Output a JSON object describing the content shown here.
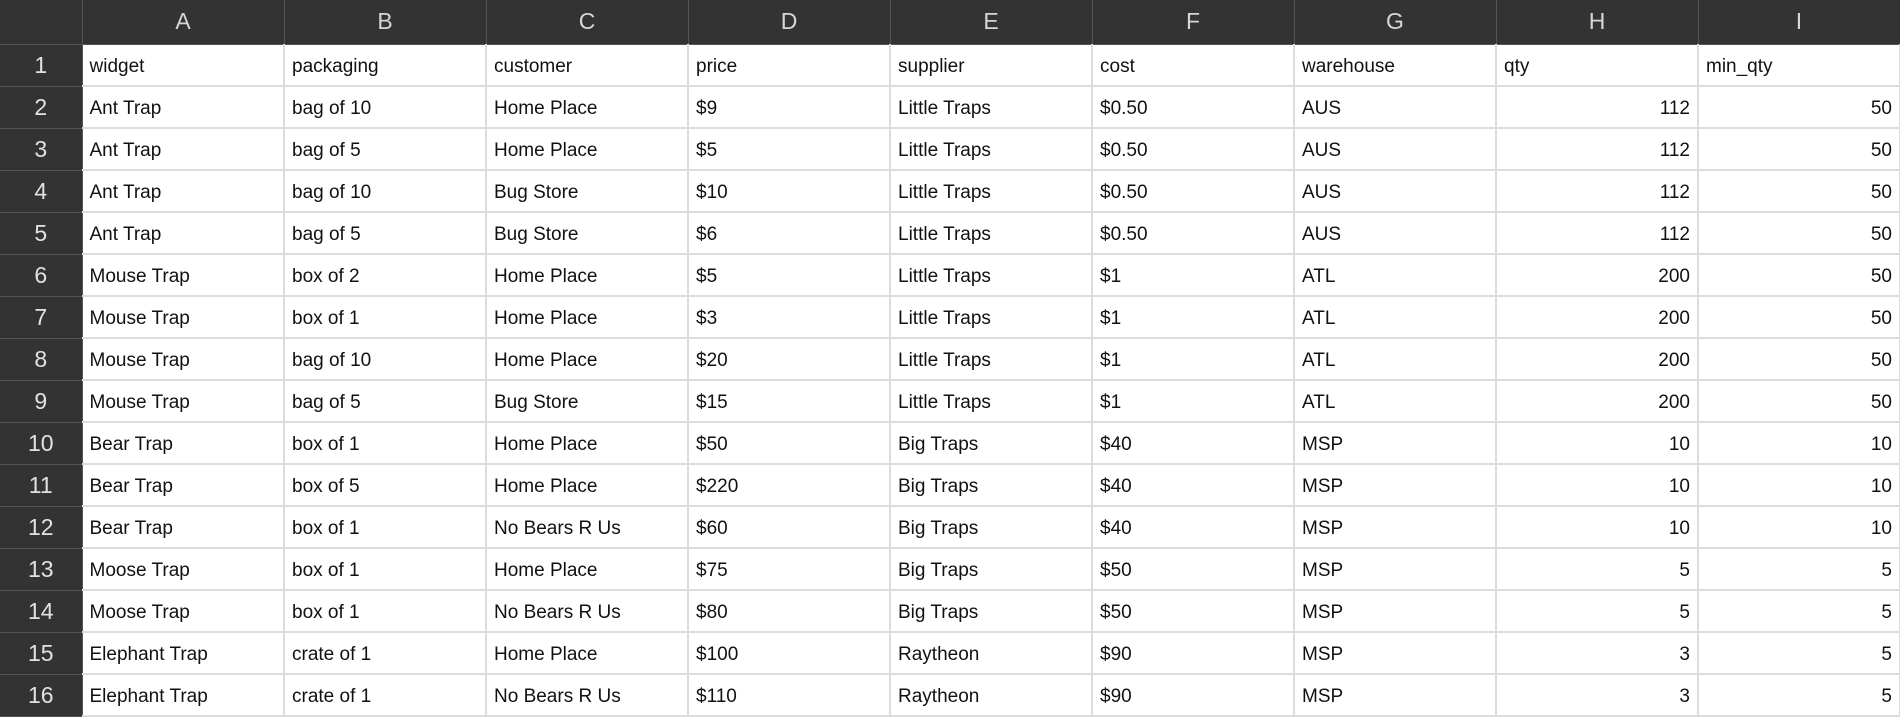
{
  "column_headers": [
    "A",
    "B",
    "C",
    "D",
    "E",
    "F",
    "G",
    "H",
    "I"
  ],
  "rows": [
    {
      "row": "1",
      "cells": [
        "widget",
        "packaging",
        "customer",
        "price",
        "supplier",
        "cost",
        "warehouse",
        "qty",
        "min_qty"
      ]
    },
    {
      "row": "2",
      "cells": [
        "Ant Trap",
        "bag of 10",
        "Home Place",
        "$9",
        "Little Traps",
        "$0.50",
        "AUS",
        "112",
        "50"
      ]
    },
    {
      "row": "3",
      "cells": [
        "Ant Trap",
        "bag of 5",
        "Home Place",
        "$5",
        "Little Traps",
        "$0.50",
        "AUS",
        "112",
        "50"
      ]
    },
    {
      "row": "4",
      "cells": [
        "Ant Trap",
        "bag of 10",
        "Bug Store",
        "$10",
        "Little Traps",
        "$0.50",
        "AUS",
        "112",
        "50"
      ]
    },
    {
      "row": "5",
      "cells": [
        "Ant Trap",
        "bag of 5",
        "Bug Store",
        "$6",
        "Little Traps",
        "$0.50",
        "AUS",
        "112",
        "50"
      ]
    },
    {
      "row": "6",
      "cells": [
        "Mouse Trap",
        "box of 2",
        "Home Place",
        "$5",
        "Little Traps",
        "$1",
        "ATL",
        "200",
        "50"
      ]
    },
    {
      "row": "7",
      "cells": [
        "Mouse Trap",
        "box of 1",
        "Home Place",
        "$3",
        "Little Traps",
        "$1",
        "ATL",
        "200",
        "50"
      ]
    },
    {
      "row": "8",
      "cells": [
        "Mouse Trap",
        "bag of 10",
        "Home Place",
        "$20",
        "Little Traps",
        "$1",
        "ATL",
        "200",
        "50"
      ]
    },
    {
      "row": "9",
      "cells": [
        "Mouse Trap",
        "bag of 5",
        "Bug Store",
        "$15",
        "Little Traps",
        "$1",
        "ATL",
        "200",
        "50"
      ]
    },
    {
      "row": "10",
      "cells": [
        "Bear Trap",
        "box of 1",
        "Home Place",
        "$50",
        "Big Traps",
        "$40",
        "MSP",
        "10",
        "10"
      ]
    },
    {
      "row": "11",
      "cells": [
        "Bear Trap",
        "box of 5",
        "Home Place",
        "$220",
        "Big Traps",
        "$40",
        "MSP",
        "10",
        "10"
      ]
    },
    {
      "row": "12",
      "cells": [
        "Bear Trap",
        "box of 1",
        "No Bears R Us",
        "$60",
        "Big Traps",
        "$40",
        "MSP",
        "10",
        "10"
      ]
    },
    {
      "row": "13",
      "cells": [
        "Moose Trap",
        "box of 1",
        "Home Place",
        "$75",
        "Big Traps",
        "$50",
        "MSP",
        "5",
        "5"
      ]
    },
    {
      "row": "14",
      "cells": [
        "Moose Trap",
        "box of 1",
        "No Bears R Us",
        "$80",
        "Big Traps",
        "$50",
        "MSP",
        "5",
        "5"
      ]
    },
    {
      "row": "15",
      "cells": [
        "Elephant Trap",
        "crate of 1",
        "Home Place",
        "$100",
        "Raytheon",
        "$90",
        "MSP",
        "3",
        "5"
      ]
    },
    {
      "row": "16",
      "cells": [
        "Elephant Trap",
        "crate of 1",
        "No Bears R Us",
        "$110",
        "Raytheon",
        "$90",
        "MSP",
        "3",
        "5"
      ]
    }
  ]
}
